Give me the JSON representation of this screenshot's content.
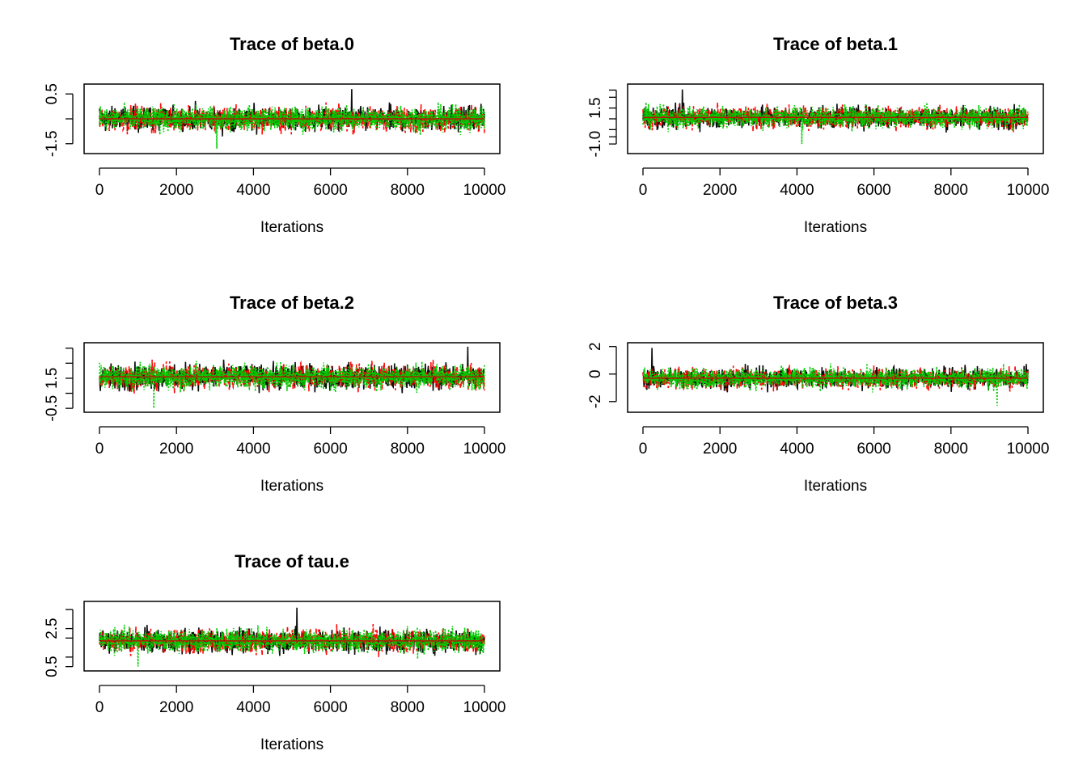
{
  "figure": {
    "panels_layout": "3 rows x 2 columns",
    "line_colors": [
      "#000000",
      "#ff0000",
      "#00cc00"
    ]
  },
  "chart_data": [
    {
      "type": "line",
      "title": "Trace of beta.0",
      "xlabel": "Iterations",
      "ylabel": "",
      "x_range": [
        0,
        10000
      ],
      "x_ticks": [
        "0",
        "2000",
        "4000",
        "6000",
        "8000",
        "10000"
      ],
      "ylim": [
        -1.8,
        0.8
      ],
      "y_ticks": [
        0.5,
        -0.5,
        -1.5
      ],
      "y_tick_labels": [
        "0.5",
        "",
        "-1.5"
      ],
      "center": -0.5,
      "spread": 0.35,
      "extreme_high": 0.7,
      "extreme_low": -1.7,
      "series": [
        {
          "color": "#000000",
          "style": "solid"
        },
        {
          "color": "#ff0000",
          "style": "dashed"
        },
        {
          "color": "#00cc00",
          "style": "dotted"
        }
      ],
      "mean_line": -0.5
    },
    {
      "type": "line",
      "title": "Trace of beta.1",
      "xlabel": "Iterations",
      "ylabel": "",
      "x_range": [
        0,
        10000
      ],
      "x_ticks": [
        "0",
        "2000",
        "4000",
        "6000",
        "8000",
        "10000"
      ],
      "ylim": [
        -1.5,
        3.0
      ],
      "y_ticks": [
        2.75,
        2.25,
        1.5,
        0.75,
        0,
        -0.5,
        -1.0
      ],
      "y_tick_labels": [
        "",
        "",
        "1.5",
        "",
        "",
        "",
        "-1.0"
      ],
      "center": 0.85,
      "spread": 0.55,
      "extreme_high": 2.8,
      "extreme_low": -1.0,
      "series": [
        {
          "color": "#000000",
          "style": "solid"
        },
        {
          "color": "#ff0000",
          "style": "dashed"
        },
        {
          "color": "#00cc00",
          "style": "dotted"
        }
      ],
      "mean_line": 0.85
    },
    {
      "type": "line",
      "title": "Trace of beta.2",
      "xlabel": "Iterations",
      "ylabel": "",
      "x_range": [
        0,
        10000
      ],
      "x_ticks": [
        "0",
        "2000",
        "4000",
        "6000",
        "8000",
        "10000"
      ],
      "ylim": [
        -0.6,
        3.7
      ],
      "y_ticks": [
        3.5,
        2.5,
        1.5,
        0.5,
        -0.5
      ],
      "y_tick_labels": [
        "",
        "",
        "1.5",
        "",
        "-0.5"
      ],
      "center": 1.6,
      "spread": 0.6,
      "extreme_high": 3.6,
      "extreme_low": -0.5,
      "series": [
        {
          "color": "#000000",
          "style": "solid"
        },
        {
          "color": "#ff0000",
          "style": "dashed"
        },
        {
          "color": "#00cc00",
          "style": "dotted"
        }
      ],
      "mean_line": 1.6
    },
    {
      "type": "line",
      "title": "Trace of beta.3",
      "xlabel": "Iterations",
      "ylabel": "",
      "x_range": [
        0,
        10000
      ],
      "x_ticks": [
        "0",
        "2000",
        "4000",
        "6000",
        "8000",
        "10000"
      ],
      "ylim": [
        -2.6,
        2.1
      ],
      "y_ticks": [
        2,
        0,
        -2
      ],
      "y_tick_labels": [
        "2",
        "0",
        "-2"
      ],
      "center": -0.3,
      "spread": 0.55,
      "extreme_high": 1.9,
      "extreme_low": -2.3,
      "series": [
        {
          "color": "#000000",
          "style": "solid"
        },
        {
          "color": "#ff0000",
          "style": "dashed"
        },
        {
          "color": "#00cc00",
          "style": "dotted"
        }
      ],
      "mean_line": -0.3
    },
    {
      "type": "line",
      "title": "Trace of tau.e",
      "xlabel": "Iterations",
      "ylabel": "",
      "x_range": [
        0,
        10000
      ],
      "x_ticks": [
        "0",
        "2000",
        "4000",
        "6000",
        "8000",
        "10000"
      ],
      "ylim": [
        0.4,
        3.8
      ],
      "y_ticks": [
        3.5,
        2.5,
        2.0,
        1.0,
        0.5
      ],
      "y_tick_labels": [
        "",
        "2.5",
        "",
        "",
        "0.5"
      ],
      "center": 1.85,
      "spread": 0.45,
      "extreme_high": 3.6,
      "extreme_low": 0.5,
      "series": [
        {
          "color": "#000000",
          "style": "solid"
        },
        {
          "color": "#ff0000",
          "style": "dashed"
        },
        {
          "color": "#00cc00",
          "style": "dotted"
        }
      ],
      "mean_line": 1.85
    }
  ]
}
